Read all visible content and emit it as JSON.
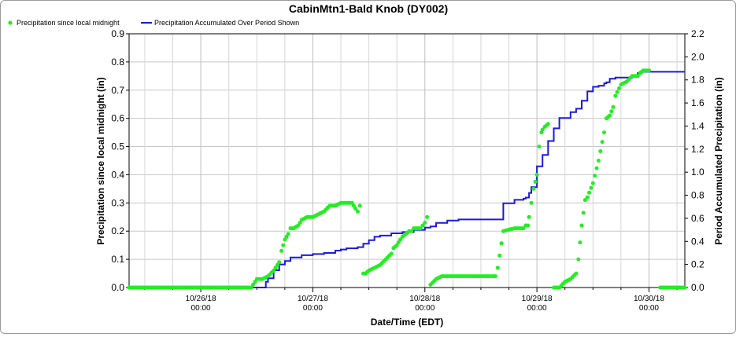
{
  "chart_data": {
    "type": "line",
    "title": "CabinMtn1-Bald Knob (DY002)",
    "xlabel": "Date/Time (EDT)",
    "ylabel_left": "Precipitation since local midnight (in)",
    "ylabel_right": "Period Accumulated Precipitation (in)",
    "legend_position": "top-left",
    "grid": true,
    "xlim": [
      -0.64,
      4.32
    ],
    "ylim_left": [
      0,
      0.9
    ],
    "ylim_right": [
      0,
      2.2
    ],
    "x_units": "days since 10/26/18 00:00",
    "x_ticks": [
      {
        "date": "10/26/18",
        "time": "00:00"
      },
      {
        "date": "10/27/18",
        "time": "00:00"
      },
      {
        "date": "10/28/18",
        "time": "00:00"
      },
      {
        "date": "10/29/18",
        "time": "00:00"
      },
      {
        "date": "10/30/18",
        "time": "00:00"
      }
    ],
    "y_ticks_left": [
      "0.0",
      "0.1",
      "0.2",
      "0.3",
      "0.4",
      "0.5",
      "0.6",
      "0.7",
      "0.8",
      "0.9"
    ],
    "y_ticks_right": [
      "0.0",
      "0.2",
      "0.4",
      "0.6",
      "0.8",
      "1.0",
      "1.2",
      "1.4",
      "1.6",
      "1.8",
      "2.0",
      "2.2"
    ],
    "series": [
      {
        "name": "Precipitation since local midnight",
        "axis": "left",
        "color": "#22ee22",
        "style": "points",
        "x": [
          -0.64,
          -0.5,
          -0.3,
          -0.1,
          0.1,
          0.3,
          0.45,
          0.5,
          0.55,
          0.6,
          0.65,
          0.7,
          0.72,
          0.75,
          0.78,
          0.8,
          0.83,
          0.87,
          0.9,
          0.95,
          1.0,
          1.05,
          1.1,
          1.15,
          1.2,
          1.25,
          1.3,
          1.35,
          1.38,
          1.4,
          1.42,
          1.45,
          1.47,
          1.5,
          1.55,
          1.6,
          1.65,
          1.7,
          1.72,
          1.75,
          1.78,
          1.8,
          1.83,
          1.86,
          1.88,
          1.9,
          1.93,
          1.96,
          1.98,
          2.0,
          2.02,
          2.05,
          2.1,
          2.15,
          2.2,
          2.3,
          2.4,
          2.5,
          2.55,
          2.58,
          2.6,
          2.63,
          2.65,
          2.7,
          2.8,
          2.88,
          2.9,
          2.92,
          2.93,
          2.95,
          2.97,
          3.0,
          3.02,
          3.04,
          3.05,
          3.07,
          3.1,
          3.15,
          3.2,
          3.25,
          3.3,
          3.35,
          3.37,
          3.4,
          3.43,
          3.45,
          3.5,
          3.55,
          3.6,
          3.62,
          3.65,
          3.68,
          3.7,
          3.75,
          3.8,
          3.85,
          3.9,
          3.92,
          3.95,
          4.0,
          4.1,
          4.2,
          4.32
        ],
        "y": [
          0,
          0,
          0,
          0,
          0,
          0,
          0,
          0.03,
          0.03,
          0.04,
          0.06,
          0.09,
          0.13,
          0.17,
          0.19,
          0.21,
          0.21,
          0.22,
          0.24,
          0.25,
          0.25,
          0.26,
          0.27,
          0.29,
          0.29,
          0.3,
          0.3,
          0.3,
          0.28,
          0.27,
          0.29,
          0.05,
          0.05,
          0.06,
          0.07,
          0.08,
          0.1,
          0.12,
          0.14,
          0.15,
          0.17,
          0.18,
          0.19,
          0.2,
          0.2,
          0.21,
          0.21,
          0.21,
          0.22,
          0.23,
          0.25,
          0.01,
          0.03,
          0.04,
          0.04,
          0.04,
          0.04,
          0.04,
          0.04,
          0.04,
          0.04,
          0.04,
          0.07,
          0.2,
          0.21,
          0.21,
          0.22,
          0.22,
          0.25,
          0.3,
          0.35,
          0.4,
          0.5,
          0.55,
          0.56,
          0.57,
          0.58,
          0.0,
          0.0,
          0.02,
          0.03,
          0.05,
          0.1,
          0.22,
          0.31,
          0.32,
          0.37,
          0.45,
          0.55,
          0.6,
          0.61,
          0.64,
          0.68,
          0.72,
          0.73,
          0.75,
          0.75,
          0.76,
          0.77,
          0.77,
          0.0,
          0.0,
          0.0
        ]
      },
      {
        "name": "Precipitation Accumulated Over Period Shown",
        "axis": "right",
        "color": "#1a1adc",
        "style": "line",
        "x": [
          -0.64,
          0.45,
          0.58,
          0.6,
          0.65,
          0.7,
          0.75,
          0.8,
          0.9,
          1.0,
          1.1,
          1.2,
          1.25,
          1.3,
          1.4,
          1.45,
          1.5,
          1.55,
          1.6,
          1.7,
          1.8,
          1.9,
          2.0,
          2.05,
          2.1,
          2.2,
          2.3,
          2.4,
          2.5,
          2.55,
          2.6,
          2.62,
          2.65,
          2.7,
          2.8,
          2.83,
          2.85,
          2.88,
          2.9,
          2.93,
          2.95,
          3.0,
          3.05,
          3.1,
          3.15,
          3.2,
          3.25,
          3.3,
          3.35,
          3.4,
          3.45,
          3.5,
          3.55,
          3.6,
          3.62,
          3.65,
          3.7,
          3.75,
          3.8,
          3.85,
          3.9,
          3.92,
          4.0,
          4.1,
          4.2,
          4.32
        ],
        "y": [
          0,
          0,
          0.05,
          0.08,
          0.15,
          0.2,
          0.23,
          0.26,
          0.28,
          0.29,
          0.3,
          0.32,
          0.33,
          0.34,
          0.35,
          0.38,
          0.41,
          0.44,
          0.45,
          0.47,
          0.48,
          0.5,
          0.52,
          0.53,
          0.56,
          0.58,
          0.59,
          0.59,
          0.59,
          0.59,
          0.59,
          0.59,
          0.59,
          0.73,
          0.76,
          0.76,
          0.76,
          0.77,
          0.78,
          0.82,
          0.87,
          1.05,
          1.15,
          1.27,
          1.38,
          1.47,
          1.47,
          1.52,
          1.55,
          1.62,
          1.7,
          1.74,
          1.75,
          1.77,
          1.78,
          1.81,
          1.82,
          1.82,
          1.82,
          1.83,
          1.86,
          1.87,
          1.87,
          1.87,
          1.87,
          1.87
        ]
      }
    ]
  }
}
